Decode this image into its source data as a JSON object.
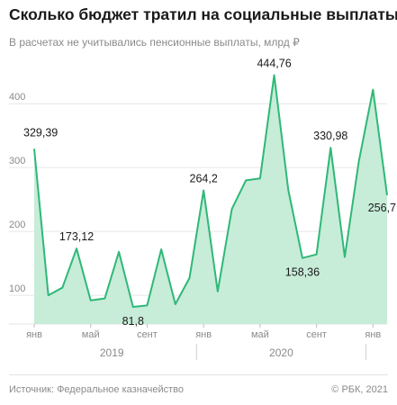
{
  "header": {
    "title": "Сколько бюджет тратил на социальные выплаты",
    "subtitle": "В расчетах не учитывались пенсионные выплаты, млрд ₽"
  },
  "footer": {
    "source": "Источник: Федеральное казначейство",
    "copyright": "© РБК, 2021"
  },
  "colors": {
    "line": "#2fb877",
    "area": "#c7ecd8"
  },
  "chart_data": {
    "type": "area",
    "title": "Сколько бюджет тратил на социальные выплаты",
    "subtitle": "В расчетах не учитывались пенсионные выплаты, млрд ₽",
    "x": [
      "2019-01",
      "2019-02",
      "2019-03",
      "2019-04",
      "2019-05",
      "2019-06",
      "2019-07",
      "2019-08",
      "2019-09",
      "2019-10",
      "2019-11",
      "2019-12",
      "2020-01",
      "2020-02",
      "2020-03",
      "2020-04",
      "2020-05",
      "2020-06",
      "2020-07",
      "2020-08",
      "2020-09",
      "2020-10",
      "2020-11",
      "2020-12",
      "2021-01",
      "2021-02"
    ],
    "values": [
      329.39,
      100,
      112,
      173.12,
      92,
      95,
      168,
      81.8,
      84,
      172,
      86,
      127,
      264.2,
      106,
      235,
      280,
      283,
      444.76,
      265,
      158.36,
      164,
      330.98,
      160,
      310,
      422,
      256.7
    ],
    "ylim": [
      55,
      475
    ],
    "yticks": [
      100,
      200,
      300,
      400
    ],
    "xticks": [
      {
        "index": 0,
        "label": "янв"
      },
      {
        "index": 4,
        "label": "май"
      },
      {
        "index": 8,
        "label": "сент"
      },
      {
        "index": 12,
        "label": "янв"
      },
      {
        "index": 16,
        "label": "май"
      },
      {
        "index": 20,
        "label": "сент"
      },
      {
        "index": 24,
        "label": "янв"
      }
    ],
    "years": [
      {
        "label": "2019",
        "from": 0,
        "to": 11
      },
      {
        "label": "2020",
        "from": 12,
        "to": 23
      }
    ],
    "data_labels": [
      {
        "index": 0,
        "text": "329,39",
        "pos": "above-right"
      },
      {
        "index": 3,
        "text": "173,12",
        "pos": "above"
      },
      {
        "index": 7,
        "text": "81,8",
        "pos": "below"
      },
      {
        "index": 12,
        "text": "264,2",
        "pos": "above"
      },
      {
        "index": 17,
        "text": "444,76",
        "pos": "above"
      },
      {
        "index": 19,
        "text": "158,36",
        "pos": "below"
      },
      {
        "index": 21,
        "text": "330,98",
        "pos": "above"
      },
      {
        "index": 25,
        "text": "256,7",
        "pos": "below-left"
      }
    ],
    "grid": true,
    "legend": "none"
  }
}
